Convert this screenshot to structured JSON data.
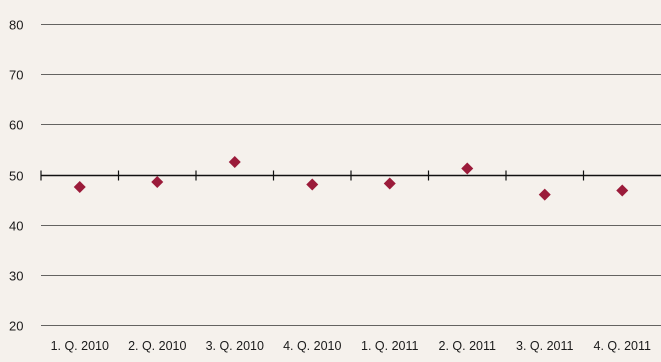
{
  "chart_data": {
    "type": "scatter",
    "title": "",
    "xlabel": "",
    "ylabel": "",
    "categories": [
      "1. Q. 2010",
      "2. Q. 2010",
      "3. Q. 2010",
      "4. Q. 2010",
      "1. Q. 2011",
      "2. Q. 2011",
      "3. Q. 2011",
      "4. Q. 2011"
    ],
    "values": [
      47.5,
      48.5,
      52.5,
      48.0,
      48.2,
      51.2,
      46.0,
      46.8
    ],
    "ylim": [
      20,
      80
    ],
    "yticks": [
      "20",
      "30",
      "40",
      "50",
      "60",
      "70",
      "80"
    ],
    "grid": true,
    "legend": "none",
    "marker": "diamond",
    "marker_color": "#9b1b3a",
    "gridline_color": "#333333",
    "axis_color": "#111111"
  }
}
